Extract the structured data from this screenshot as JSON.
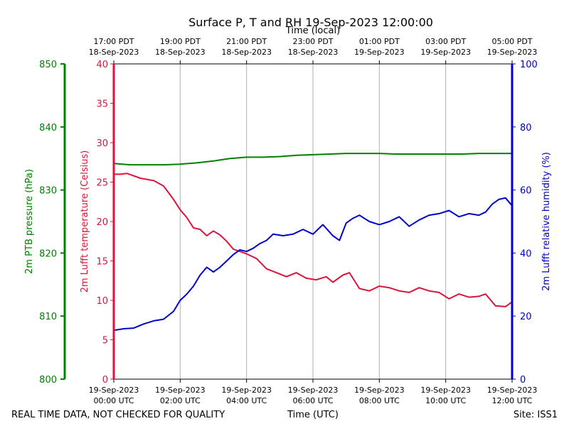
{
  "chart_data": {
    "type": "line",
    "title": "Surface P, T and RH 19-Sep-2023 12:00:00",
    "top_axis_label": "Time (local)",
    "xlabel": "Time (UTC)",
    "footer_left": "REAL TIME DATA, NOT CHECKED FOR QUALITY",
    "footer_right": "Site: ISS1",
    "x_range_hours_utc": [
      0,
      12
    ],
    "x_ticks": [
      {
        "hour": 0,
        "utc_date": "19-Sep-2023",
        "utc_time": "00:00 UTC",
        "local_time": "17:00 PDT",
        "local_date": "18-Sep-2023"
      },
      {
        "hour": 2,
        "utc_date": "19-Sep-2023",
        "utc_time": "02:00 UTC",
        "local_time": "19:00 PDT",
        "local_date": "18-Sep-2023"
      },
      {
        "hour": 4,
        "utc_date": "19-Sep-2023",
        "utc_time": "04:00 UTC",
        "local_time": "21:00 PDT",
        "local_date": "18-Sep-2023"
      },
      {
        "hour": 6,
        "utc_date": "19-Sep-2023",
        "utc_time": "06:00 UTC",
        "local_time": "23:00 PDT",
        "local_date": "18-Sep-2023"
      },
      {
        "hour": 8,
        "utc_date": "19-Sep-2023",
        "utc_time": "08:00 UTC",
        "local_time": "01:00 PDT",
        "local_date": "19-Sep-2023"
      },
      {
        "hour": 10,
        "utc_date": "19-Sep-2023",
        "utc_time": "10:00 UTC",
        "local_time": "03:00 PDT",
        "local_date": "19-Sep-2023"
      },
      {
        "hour": 12,
        "utc_date": "19-Sep-2023",
        "utc_time": "12:00 UTC",
        "local_time": "05:00 PDT",
        "local_date": "19-Sep-2023"
      }
    ],
    "axes": {
      "pressure": {
        "label": "2m PTB pressure (hPa)",
        "range": [
          800,
          850
        ],
        "ticks": [
          800,
          810,
          820,
          830,
          840,
          850
        ],
        "color": "#008000"
      },
      "temperature": {
        "label": "2m Lufft temperature (Celsius)",
        "range": [
          0,
          40
        ],
        "ticks": [
          0,
          5,
          10,
          15,
          20,
          25,
          30,
          35,
          40
        ],
        "color": "#dc143c"
      },
      "humidity": {
        "label": "2m Lufft relative humidity (%)",
        "range": [
          0,
          100
        ],
        "ticks": [
          0,
          20,
          40,
          60,
          80,
          100
        ],
        "color": "#0000cd"
      }
    },
    "series": [
      {
        "name": "pressure",
        "axis": "pressure",
        "color": "#008000",
        "x": [
          0,
          0.5,
          1,
          1.5,
          2,
          2.5,
          3,
          3.5,
          4,
          4.5,
          5,
          5.5,
          6,
          6.5,
          7,
          7.5,
          8,
          8.5,
          9,
          9.5,
          10,
          10.5,
          11,
          11.5,
          12
        ],
        "values": [
          834.2,
          834.0,
          834.0,
          834.0,
          834.1,
          834.3,
          834.6,
          835.0,
          835.2,
          835.2,
          835.3,
          835.5,
          835.6,
          835.7,
          835.8,
          835.8,
          835.8,
          835.7,
          835.7,
          835.7,
          835.7,
          835.7,
          835.8,
          835.8,
          835.8
        ]
      },
      {
        "name": "temperature",
        "axis": "temperature",
        "color": "#dc143c",
        "x": [
          0,
          0.2,
          0.4,
          0.8,
          1.2,
          1.5,
          1.8,
          2.0,
          2.2,
          2.4,
          2.6,
          2.8,
          3.0,
          3.2,
          3.4,
          3.6,
          3.8,
          4.0,
          4.3,
          4.6,
          4.9,
          5.2,
          5.5,
          5.8,
          6.1,
          6.4,
          6.6,
          6.9,
          7.1,
          7.4,
          7.7,
          8.0,
          8.3,
          8.6,
          8.9,
          9.2,
          9.5,
          9.8,
          10.1,
          10.4,
          10.7,
          11.0,
          11.2,
          11.5,
          11.8,
          12.0
        ],
        "values": [
          26,
          26,
          26.1,
          25.5,
          25.2,
          24.5,
          22.8,
          21.5,
          20.5,
          19.2,
          19.0,
          18.2,
          18.8,
          18.3,
          17.5,
          16.5,
          16.2,
          15.9,
          15.3,
          14.0,
          13.5,
          13.0,
          13.5,
          12.8,
          12.6,
          13.0,
          12.3,
          13.2,
          13.5,
          11.5,
          11.2,
          11.8,
          11.6,
          11.2,
          11.0,
          11.6,
          11.2,
          11.0,
          10.2,
          10.8,
          10.4,
          10.5,
          10.8,
          9.3,
          9.2,
          9.8
        ]
      },
      {
        "name": "humidity",
        "axis": "humidity",
        "color": "#0000cd",
        "x": [
          0,
          0.3,
          0.6,
          0.9,
          1.2,
          1.5,
          1.8,
          2.0,
          2.2,
          2.4,
          2.6,
          2.8,
          3.0,
          3.2,
          3.4,
          3.6,
          3.8,
          4.0,
          4.2,
          4.4,
          4.6,
          4.8,
          5.1,
          5.4,
          5.7,
          6.0,
          6.3,
          6.6,
          6.8,
          7.0,
          7.2,
          7.4,
          7.7,
          8.0,
          8.3,
          8.6,
          8.9,
          9.2,
          9.5,
          9.8,
          10.1,
          10.4,
          10.7,
          11.0,
          11.2,
          11.4,
          11.6,
          11.8,
          12.0
        ],
        "values": [
          15.5,
          16.0,
          16.2,
          17.5,
          18.5,
          19.0,
          21.5,
          25.0,
          27.0,
          29.5,
          33.0,
          35.5,
          34.0,
          35.5,
          37.5,
          39.5,
          41.0,
          40.5,
          41.5,
          43.0,
          44.0,
          46.0,
          45.5,
          46.0,
          47.5,
          46.0,
          49.0,
          45.5,
          44.0,
          49.5,
          51.0,
          52.0,
          50.0,
          49.0,
          50.0,
          51.5,
          48.5,
          50.5,
          52.0,
          52.5,
          53.5,
          51.5,
          52.5,
          52.0,
          53.0,
          55.5,
          57.0,
          57.5,
          55.0
        ]
      }
    ]
  }
}
